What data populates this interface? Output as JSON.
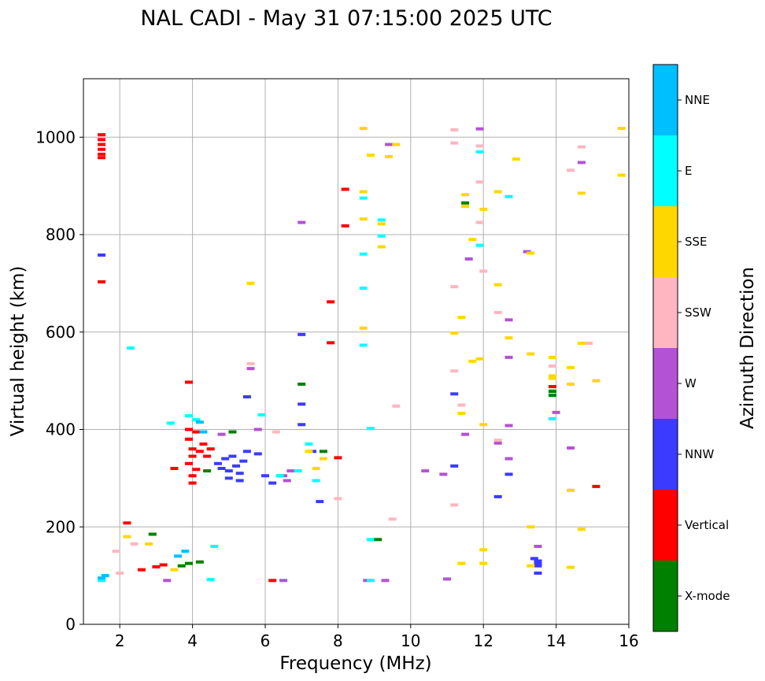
{
  "chart_data": {
    "type": "scatter",
    "title": "NAL CADI - May 31 07:15:00 2025 UTC",
    "xlabel": "Frequency (MHz)",
    "ylabel": "Virtual height (km)",
    "xlim": [
      1,
      16
    ],
    "ylim": [
      0,
      1120
    ],
    "xticks": [
      2,
      4,
      6,
      8,
      10,
      12,
      14,
      16
    ],
    "yticks": [
      0,
      200,
      400,
      600,
      800,
      1000
    ],
    "grid": true,
    "colorbar": {
      "label": "Azimuth Direction",
      "categories": [
        {
          "name": "X-mode",
          "color": "#008000"
        },
        {
          "name": "Vertical",
          "color": "#ff0000"
        },
        {
          "name": "NNW",
          "color": "#3b3bff"
        },
        {
          "name": "W",
          "color": "#b452d6"
        },
        {
          "name": "SSW",
          "color": "#ffb6c1"
        },
        {
          "name": "SSE",
          "color": "#ffd700"
        },
        {
          "name": "E",
          "color": "#00ffff"
        },
        {
          "name": "NNE",
          "color": "#00bfff"
        }
      ]
    },
    "series": [
      {
        "name": "Vertical",
        "points": [
          [
            1.5,
            1005
          ],
          [
            1.5,
            995
          ],
          [
            1.5,
            985
          ],
          [
            1.5,
            975
          ],
          [
            1.5,
            965
          ],
          [
            1.5,
            958
          ],
          [
            1.5,
            703
          ],
          [
            2.2,
            208
          ],
          [
            2.6,
            112
          ],
          [
            3.0,
            118
          ],
          [
            3.2,
            122
          ],
          [
            3.5,
            320
          ],
          [
            3.9,
            330
          ],
          [
            3.9,
            380
          ],
          [
            3.9,
            400
          ],
          [
            3.9,
            497
          ],
          [
            4.0,
            290
          ],
          [
            4.0,
            305
          ],
          [
            4.0,
            345
          ],
          [
            4.0,
            360
          ],
          [
            4.1,
            395
          ],
          [
            4.1,
            318
          ],
          [
            4.2,
            355
          ],
          [
            4.3,
            370
          ],
          [
            4.4,
            345
          ],
          [
            4.5,
            360
          ],
          [
            6.2,
            90
          ],
          [
            7.8,
            662
          ],
          [
            7.8,
            578
          ],
          [
            8.2,
            893
          ],
          [
            8.2,
            818
          ],
          [
            8.0,
            342
          ],
          [
            13.9,
            488
          ],
          [
            15.1,
            283
          ]
        ]
      },
      {
        "name": "NNW",
        "points": [
          [
            1.5,
            758
          ],
          [
            4.7,
            330
          ],
          [
            4.8,
            320
          ],
          [
            4.9,
            340
          ],
          [
            5.0,
            315
          ],
          [
            5.0,
            300
          ],
          [
            5.1,
            345
          ],
          [
            5.2,
            325
          ],
          [
            5.3,
            310
          ],
          [
            5.4,
            335
          ],
          [
            5.5,
            355
          ],
          [
            5.3,
            295
          ],
          [
            5.5,
            467
          ],
          [
            5.8,
            350
          ],
          [
            6.0,
            305
          ],
          [
            6.2,
            290
          ],
          [
            7.0,
            452
          ],
          [
            7.0,
            410
          ],
          [
            7.0,
            595
          ],
          [
            7.5,
            252
          ],
          [
            7.3,
            355
          ],
          [
            11.2,
            473
          ],
          [
            11.2,
            325
          ],
          [
            12.4,
            262
          ],
          [
            12.7,
            308
          ],
          [
            13.5,
            120
          ],
          [
            13.5,
            105
          ],
          [
            13.5,
            125
          ],
          [
            13.5,
            130
          ],
          [
            13.4,
            135
          ]
        ]
      },
      {
        "name": "W",
        "points": [
          [
            5.6,
            525
          ],
          [
            7.0,
            825
          ],
          [
            4.8,
            390
          ],
          [
            5.8,
            400
          ],
          [
            6.5,
            305
          ],
          [
            6.6,
            295
          ],
          [
            6.7,
            315
          ],
          [
            6.5,
            90
          ],
          [
            3.3,
            90
          ],
          [
            8.8,
            90
          ],
          [
            9.3,
            90
          ],
          [
            9.4,
            985
          ],
          [
            10.4,
            315
          ],
          [
            10.9,
            308
          ],
          [
            11.0,
            93
          ],
          [
            11.6,
            750
          ],
          [
            11.9,
            1017
          ],
          [
            11.5,
            390
          ],
          [
            12.4,
            372
          ],
          [
            12.7,
            408
          ],
          [
            12.7,
            625
          ],
          [
            12.7,
            548
          ],
          [
            12.7,
            340
          ],
          [
            13.2,
            765
          ],
          [
            13.5,
            160
          ],
          [
            14.4,
            362
          ],
          [
            14.7,
            948
          ],
          [
            14.0,
            435
          ]
        ]
      },
      {
        "name": "SSW",
        "points": [
          [
            1.9,
            150
          ],
          [
            2.0,
            105
          ],
          [
            2.4,
            165
          ],
          [
            5.6,
            535
          ],
          [
            6.3,
            395
          ],
          [
            8.0,
            258
          ],
          [
            9.5,
            216
          ],
          [
            9.6,
            448
          ],
          [
            11.2,
            1015
          ],
          [
            11.2,
            988
          ],
          [
            11.2,
            520
          ],
          [
            11.2,
            693
          ],
          [
            11.2,
            245
          ],
          [
            11.4,
            450
          ],
          [
            11.9,
            982
          ],
          [
            11.9,
            825
          ],
          [
            11.9,
            908
          ],
          [
            12.0,
            725
          ],
          [
            12.4,
            378
          ],
          [
            12.4,
            640
          ],
          [
            13.9,
            530
          ],
          [
            14.4,
            932
          ],
          [
            14.7,
            980
          ],
          [
            14.9,
            577
          ]
        ]
      },
      {
        "name": "SSE",
        "points": [
          [
            2.2,
            180
          ],
          [
            2.8,
            165
          ],
          [
            3.5,
            112
          ],
          [
            5.6,
            700
          ],
          [
            7.2,
            355
          ],
          [
            7.4,
            320
          ],
          [
            7.6,
            340
          ],
          [
            8.7,
            1018
          ],
          [
            8.7,
            888
          ],
          [
            8.7,
            832
          ],
          [
            8.7,
            608
          ],
          [
            8.9,
            963
          ],
          [
            9.2,
            822
          ],
          [
            9.2,
            775
          ],
          [
            9.4,
            960
          ],
          [
            9.6,
            985
          ],
          [
            11.2,
            598
          ],
          [
            11.4,
            630
          ],
          [
            11.4,
            433
          ],
          [
            11.5,
            858
          ],
          [
            11.5,
            882
          ],
          [
            11.7,
            540
          ],
          [
            11.9,
            545
          ],
          [
            11.7,
            790
          ],
          [
            12.0,
            410
          ],
          [
            12.0,
            852
          ],
          [
            12.0,
            153
          ],
          [
            12.0,
            125
          ],
          [
            11.4,
            125
          ],
          [
            12.4,
            888
          ],
          [
            12.4,
            697
          ],
          [
            12.7,
            588
          ],
          [
            12.9,
            955
          ],
          [
            13.3,
            555
          ],
          [
            13.3,
            762
          ],
          [
            13.3,
            200
          ],
          [
            13.3,
            120
          ],
          [
            13.9,
            548
          ],
          [
            13.9,
            505
          ],
          [
            13.9,
            510
          ],
          [
            13.9,
            480
          ],
          [
            14.4,
            527
          ],
          [
            14.4,
            493
          ],
          [
            14.4,
            275
          ],
          [
            14.4,
            117
          ],
          [
            14.7,
            885
          ],
          [
            14.7,
            577
          ],
          [
            14.7,
            195
          ],
          [
            15.1,
            500
          ],
          [
            15.8,
            1018
          ],
          [
            15.8,
            922
          ]
        ]
      },
      {
        "name": "E",
        "points": [
          [
            1.5,
            90
          ],
          [
            2.3,
            567
          ],
          [
            3.4,
            413
          ],
          [
            3.9,
            428
          ],
          [
            4.1,
            420
          ],
          [
            4.5,
            92
          ],
          [
            4.6,
            160
          ],
          [
            5.9,
            430
          ],
          [
            6.4,
            305
          ],
          [
            6.9,
            315
          ],
          [
            7.2,
            370
          ],
          [
            7.4,
            295
          ],
          [
            8.7,
            875
          ],
          [
            8.7,
            760
          ],
          [
            8.7,
            573
          ],
          [
            8.7,
            690
          ],
          [
            8.9,
            402
          ],
          [
            8.9,
            174
          ],
          [
            8.9,
            90
          ],
          [
            9.2,
            797
          ],
          [
            9.2,
            830
          ],
          [
            11.9,
            970
          ],
          [
            11.9,
            778
          ],
          [
            12.7,
            878
          ],
          [
            13.9,
            422
          ]
        ]
      },
      {
        "name": "NNE",
        "points": [
          [
            1.5,
            95
          ],
          [
            1.6,
            100
          ],
          [
            3.6,
            140
          ],
          [
            3.8,
            150
          ],
          [
            4.2,
            415
          ],
          [
            4.3,
            395
          ]
        ]
      },
      {
        "name": "X-mode",
        "points": [
          [
            2.9,
            185
          ],
          [
            3.7,
            120
          ],
          [
            3.9,
            125
          ],
          [
            4.2,
            128
          ],
          [
            4.4,
            315
          ],
          [
            5.1,
            395
          ],
          [
            7.0,
            493
          ],
          [
            7.6,
            355
          ],
          [
            9.1,
            174
          ],
          [
            11.5,
            865
          ],
          [
            13.9,
            470
          ],
          [
            13.9,
            478
          ]
        ]
      }
    ]
  }
}
